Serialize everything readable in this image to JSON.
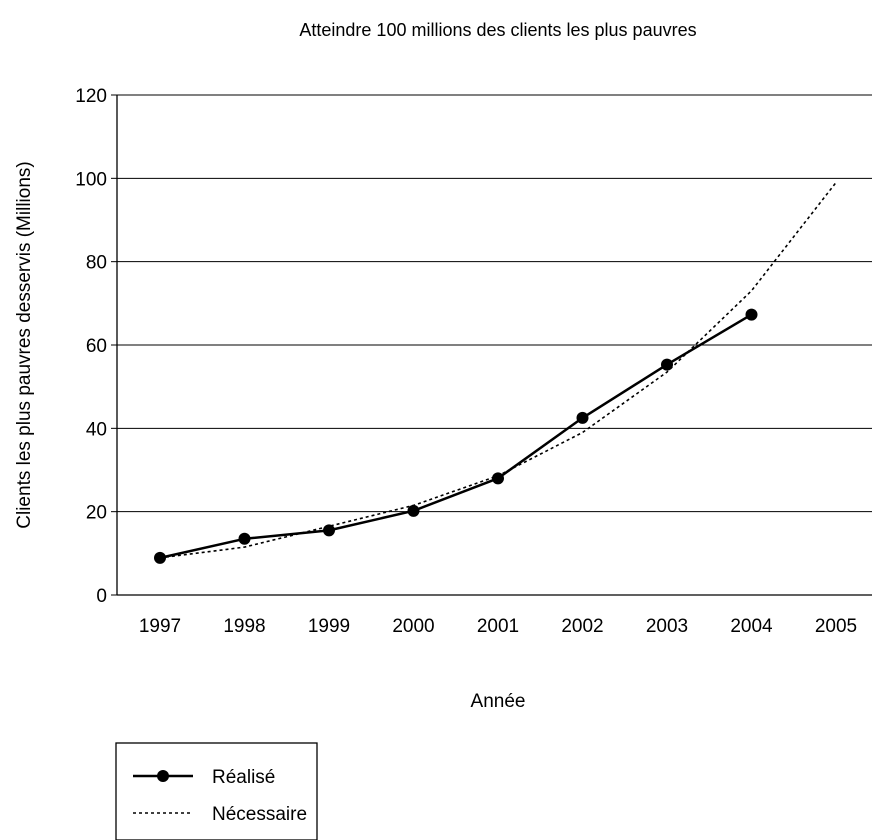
{
  "chart_data": {
    "type": "line",
    "title": "Atteindre 100 millions des clients les plus pauvres",
    "xlabel": "Année",
    "ylabel": "Clients les plus pauvres desservis (Millions)",
    "x": [
      "1997",
      "1998",
      "1999",
      "2000",
      "2001",
      "2002",
      "2003",
      "2004",
      "2005"
    ],
    "ylim": [
      0,
      120
    ],
    "yticks": [
      0,
      20,
      40,
      60,
      80,
      100,
      120
    ],
    "grid": "horizontal",
    "legend_position": "bottom-left",
    "series": [
      {
        "name": "Réalisé",
        "style": "solid-with-markers",
        "color": "#000000",
        "values": [
          8.9,
          13.5,
          15.5,
          20.2,
          28.0,
          42.5,
          55.3,
          67.3,
          null
        ]
      },
      {
        "name": "Nécessaire",
        "style": "dotted",
        "color": "#000000",
        "values": [
          8.9,
          11.5,
          16.5,
          21.5,
          28.6,
          39.0,
          53.5,
          73.0,
          99.0
        ]
      }
    ]
  }
}
